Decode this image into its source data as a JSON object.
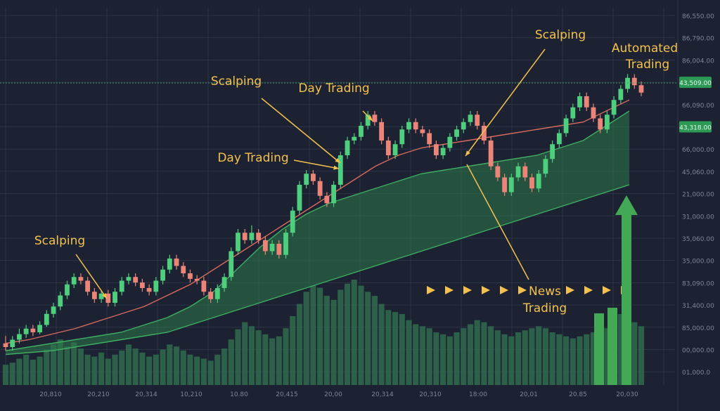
{
  "chart_data": {
    "type": "candlestick",
    "y_axis_labels": [
      "86,550.00",
      "86,790.00",
      "86,004.00",
      "43,509.00",
      "66,090.00",
      "43,318.00",
      "66,000.00",
      "45,060.00",
      "21,000.00",
      "31,000.00",
      "35,060.00",
      "35,000.00",
      "83,090.00",
      "31,400.00",
      "85,000.00",
      "00,000.00",
      "01,000.0"
    ],
    "price_tags": [
      "43,509.00",
      "43,318.00"
    ],
    "x_axis_labels": [
      "20,810",
      "20,210",
      "20,314",
      "10,210",
      "10.80",
      "20,415",
      "20,00",
      "20,314",
      "20,310",
      "18:00",
      "20,01",
      "20.85",
      "20,030"
    ],
    "annotations": [
      "Scalping",
      "Day Trading",
      "Day Trading",
      "Scalping",
      "Scalping",
      "Automated",
      "Trading",
      "News",
      "Trading"
    ],
    "colors": {
      "background": "#1c2232",
      "grid": "#2c3446",
      "up_candle": "#4fcf7e",
      "down_candle": "#ec8579",
      "annotation": "#f4c14f",
      "volume": "#2f6b4e",
      "ma_band": "#2d7a4a",
      "arrow": "#43a955"
    },
    "candles": [
      [
        70,
        68,
        74,
        66
      ],
      [
        68,
        72,
        74,
        66
      ],
      [
        72,
        75,
        78,
        70
      ],
      [
        75,
        78,
        80,
        73
      ],
      [
        78,
        76,
        80,
        74
      ],
      [
        76,
        80,
        82,
        75
      ],
      [
        80,
        86,
        88,
        79
      ],
      [
        86,
        90,
        92,
        84
      ],
      [
        90,
        96,
        98,
        88
      ],
      [
        96,
        102,
        104,
        94
      ],
      [
        102,
        106,
        108,
        100
      ],
      [
        106,
        104,
        108,
        102
      ],
      [
        104,
        98,
        106,
        96
      ],
      [
        98,
        94,
        100,
        92
      ],
      [
        94,
        97,
        99,
        92
      ],
      [
        97,
        92,
        99,
        90
      ],
      [
        92,
        98,
        100,
        90
      ],
      [
        98,
        104,
        106,
        96
      ],
      [
        104,
        106,
        108,
        102
      ],
      [
        106,
        103,
        108,
        101
      ],
      [
        103,
        100,
        105,
        98
      ],
      [
        100,
        98,
        102,
        96
      ],
      [
        98,
        104,
        106,
        96
      ],
      [
        104,
        110,
        112,
        102
      ],
      [
        110,
        116,
        118,
        108
      ],
      [
        116,
        112,
        118,
        110
      ],
      [
        112,
        108,
        114,
        106
      ],
      [
        108,
        105,
        110,
        103
      ],
      [
        105,
        104,
        107,
        102
      ],
      [
        104,
        98,
        106,
        96
      ],
      [
        98,
        94,
        100,
        92
      ],
      [
        94,
        100,
        102,
        92
      ],
      [
        100,
        106,
        108,
        98
      ],
      [
        106,
        120,
        122,
        104
      ],
      [
        120,
        130,
        132,
        118
      ],
      [
        130,
        126,
        132,
        124
      ],
      [
        126,
        130,
        134,
        124
      ],
      [
        130,
        126,
        132,
        124
      ],
      [
        126,
        120,
        128,
        118
      ],
      [
        120,
        124,
        126,
        118
      ],
      [
        124,
        118,
        126,
        116
      ],
      [
        118,
        130,
        132,
        116
      ],
      [
        130,
        142,
        144,
        128
      ],
      [
        142,
        156,
        158,
        140
      ],
      [
        156,
        162,
        164,
        154
      ],
      [
        162,
        158,
        164,
        156
      ],
      [
        158,
        150,
        160,
        148
      ],
      [
        150,
        146,
        152,
        144
      ],
      [
        146,
        156,
        158,
        144
      ],
      [
        156,
        172,
        174,
        154
      ],
      [
        172,
        180,
        182,
        170
      ],
      [
        180,
        182,
        184,
        178
      ],
      [
        182,
        188,
        190,
        180
      ],
      [
        188,
        194,
        196,
        186
      ],
      [
        194,
        190,
        196,
        188
      ],
      [
        190,
        180,
        192,
        178
      ],
      [
        180,
        172,
        182,
        170
      ],
      [
        172,
        178,
        180,
        170
      ],
      [
        178,
        186,
        188,
        176
      ],
      [
        186,
        190,
        192,
        184
      ],
      [
        190,
        186,
        192,
        184
      ],
      [
        186,
        184,
        188,
        182
      ],
      [
        184,
        178,
        186,
        176
      ],
      [
        178,
        172,
        180,
        170
      ],
      [
        172,
        176,
        178,
        170
      ],
      [
        176,
        182,
        184,
        174
      ],
      [
        182,
        186,
        188,
        180
      ],
      [
        186,
        190,
        192,
        184
      ],
      [
        190,
        194,
        196,
        188
      ],
      [
        194,
        188,
        196,
        186
      ],
      [
        188,
        180,
        190,
        178
      ],
      [
        180,
        166,
        182,
        164
      ],
      [
        166,
        160,
        168,
        158
      ],
      [
        160,
        152,
        162,
        150
      ],
      [
        152,
        160,
        162,
        150
      ],
      [
        160,
        166,
        168,
        158
      ],
      [
        166,
        160,
        168,
        158
      ],
      [
        160,
        154,
        162,
        152
      ],
      [
        154,
        162,
        164,
        152
      ],
      [
        162,
        170,
        172,
        160
      ],
      [
        170,
        178,
        180,
        168
      ],
      [
        178,
        184,
        186,
        176
      ],
      [
        184,
        192,
        194,
        182
      ],
      [
        192,
        198,
        200,
        190
      ],
      [
        198,
        204,
        206,
        196
      ],
      [
        204,
        198,
        206,
        196
      ],
      [
        198,
        192,
        200,
        190
      ],
      [
        192,
        186,
        194,
        184
      ],
      [
        186,
        194,
        196,
        184
      ],
      [
        194,
        202,
        204,
        192
      ],
      [
        202,
        208,
        210,
        200
      ],
      [
        208,
        214,
        216,
        206
      ],
      [
        214,
        210,
        216,
        208
      ],
      [
        210,
        206,
        212,
        204
      ]
    ],
    "volumes": [
      20,
      22,
      26,
      30,
      25,
      28,
      35,
      40,
      45,
      38,
      42,
      36,
      30,
      28,
      32,
      26,
      30,
      34,
      40,
      36,
      32,
      28,
      30,
      35,
      40,
      38,
      34,
      30,
      28,
      26,
      24,
      30,
      36,
      45,
      55,
      62,
      58,
      54,
      50,
      46,
      48,
      56,
      68,
      80,
      92,
      98,
      96,
      88,
      84,
      94,
      100,
      104,
      98,
      92,
      88,
      80,
      74,
      72,
      70,
      64,
      60,
      58,
      56,
      52,
      50,
      48,
      52,
      56,
      60,
      64,
      62,
      58,
      54,
      50,
      48,
      52,
      54,
      56,
      58,
      56,
      52,
      50,
      48,
      46,
      48,
      50,
      52,
      54,
      56,
      60,
      70,
      66,
      62,
      58
    ],
    "overlay_lines": {
      "ma_red": [
        70,
        72,
        75,
        78,
        82,
        86,
        90,
        96,
        102,
        110,
        118,
        126,
        134,
        142,
        150,
        158,
        166,
        172,
        176,
        178,
        180,
        182,
        184,
        186,
        188,
        190,
        196,
        202
      ],
      "ma_top": [
        66,
        68,
        70,
        72,
        74,
        76,
        80,
        84,
        90,
        98,
        110,
        122,
        132,
        140,
        146,
        150,
        154,
        158,
        162,
        164,
        166,
        168,
        170,
        172,
        176,
        180,
        188,
        196
      ],
      "ma_bottom": [
        64,
        65,
        66,
        68,
        70,
        72,
        74,
        76,
        80,
        84,
        88,
        92,
        96,
        100,
        104,
        108,
        112,
        116,
        120,
        124,
        128,
        132,
        136,
        140,
        144,
        148,
        152,
        156
      ]
    }
  }
}
